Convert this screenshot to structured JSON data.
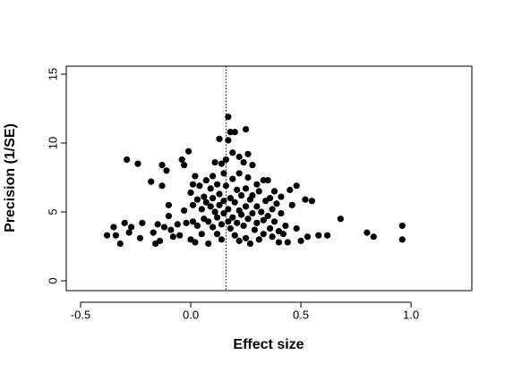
{
  "chart_data": {
    "type": "scatter",
    "xlabel": "Effect size",
    "ylabel": "Precision (1/SE)",
    "color": "#000000",
    "xlim": [
      -0.565,
      1.276
    ],
    "ylim": [
      -0.71,
      15.58
    ],
    "xticks": [
      -0.5,
      {
        "value": 0,
        "label": "0.0"
      },
      0.5,
      {
        "value": 1,
        "label": "1.0"
      }
    ],
    "yticks": [
      0,
      5,
      10,
      15
    ],
    "vline": 0.16,
    "x": [
      -0.38,
      -0.35,
      -0.34,
      -0.32,
      -0.3,
      -0.29,
      -0.28,
      -0.27,
      -0.24,
      -0.23,
      -0.22,
      -0.18,
      -0.17,
      -0.16,
      -0.15,
      -0.14,
      -0.13,
      -0.13,
      -0.12,
      -0.11,
      -0.1,
      -0.1,
      -0.09,
      -0.08,
      -0.06,
      -0.05,
      -0.04,
      -0.03,
      -0.03,
      -0.02,
      -0.01,
      0.0,
      0.0,
      0.01,
      0.01,
      0.01,
      0.02,
      0.02,
      0.03,
      0.03,
      0.04,
      0.05,
      0.05,
      0.06,
      0.06,
      0.07,
      0.07,
      0.08,
      0.08,
      0.09,
      0.09,
      0.1,
      0.1,
      0.1,
      0.11,
      0.11,
      0.12,
      0.12,
      0.12,
      0.13,
      0.13,
      0.13,
      0.14,
      0.14,
      0.14,
      0.15,
      0.15,
      0.15,
      0.16,
      0.16,
      0.17,
      0.17,
      0.17,
      0.17,
      0.18,
      0.18,
      0.18,
      0.19,
      0.19,
      0.19,
      0.2,
      0.2,
      0.2,
      0.21,
      0.21,
      0.22,
      0.22,
      0.22,
      0.22,
      0.23,
      0.23,
      0.24,
      0.24,
      0.25,
      0.25,
      0.25,
      0.25,
      0.26,
      0.26,
      0.26,
      0.27,
      0.27,
      0.28,
      0.28,
      0.28,
      0.29,
      0.3,
      0.3,
      0.3,
      0.31,
      0.31,
      0.32,
      0.33,
      0.33,
      0.33,
      0.34,
      0.35,
      0.35,
      0.36,
      0.36,
      0.37,
      0.37,
      0.38,
      0.38,
      0.39,
      0.4,
      0.4,
      0.41,
      0.41,
      0.42,
      0.43,
      0.44,
      0.45,
      0.46,
      0.48,
      0.48,
      0.5,
      0.52,
      0.53,
      0.55,
      0.58,
      0.62,
      0.68,
      0.8,
      0.83,
      0.96,
      0.96
    ],
    "y": [
      3.3,
      3.9,
      3.3,
      2.7,
      4.2,
      8.8,
      3.5,
      3.9,
      8.5,
      3.1,
      4.2,
      7.2,
      3.5,
      2.7,
      4.1,
      2.9,
      8.4,
      6.9,
      3.9,
      8.0,
      4.7,
      5.5,
      3.7,
      3.2,
      4.1,
      3.3,
      8.8,
      8.4,
      5.1,
      4.2,
      9.4,
      6.4,
      3.0,
      7.0,
      5.5,
      4.3,
      2.8,
      7.6,
      5.9,
      4.0,
      6.9,
      5.2,
      3.4,
      6.1,
      4.5,
      7.3,
      5.7,
      4.3,
      2.7,
      6.7,
      5.4,
      7.6,
      6.0,
      3.9,
      8.6,
      5.0,
      7.0,
      4.6,
      3.4,
      10.3,
      6.3,
      5.5,
      8.5,
      4.1,
      3.0,
      7.8,
      5.8,
      4.9,
      6.9,
      8.8,
      11.9,
      10.2,
      5.2,
      4.3,
      10.8,
      6.0,
      3.8,
      9.3,
      7.4,
      4.6,
      10.8,
      5.7,
      3.3,
      6.6,
      4.2,
      9.0,
      7.8,
      5.1,
      2.9,
      6.2,
      4.8,
      8.6,
      4.0,
      11.0,
      6.7,
      5.4,
      3.1,
      9.2,
      7.5,
      4.5,
      5.9,
      2.7,
      8.4,
      6.2,
      4.9,
      3.7,
      7.0,
      5.4,
      4.2,
      6.5,
      3.0,
      5.0,
      7.3,
      4.4,
      3.4,
      5.8,
      7.3,
      4.7,
      6.0,
      3.8,
      5.2,
      3.2,
      6.5,
      4.3,
      5.6,
      3.6,
      2.8,
      6.1,
      4.9,
      3.4,
      4.0,
      2.8,
      6.6,
      5.5,
      6.9,
      3.8,
      2.9,
      5.9,
      3.2,
      5.8,
      3.3,
      3.3,
      4.5,
      3.5,
      3.2,
      4.0,
      3.0
    ]
  }
}
